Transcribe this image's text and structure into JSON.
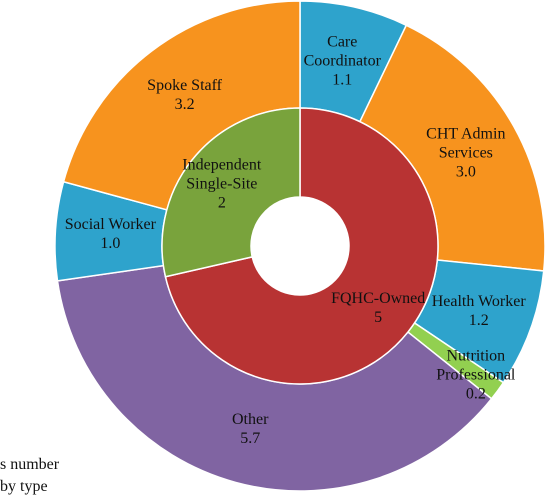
{
  "chart_data": [
    {
      "type": "donut",
      "categories": [
        "Care Coordinator",
        "CHT Admin Services",
        "Health Worker",
        "Nutrition Professional",
        "Other",
        "Social Worker",
        "Spoke Staff"
      ],
      "values": [
        1.1,
        3,
        1.2,
        0.2,
        5.7,
        1,
        3.2
      ],
      "value_labels": [
        "1.1",
        "3.0",
        "1.2",
        "0.2",
        "5.7",
        "1.0",
        "3.2"
      ],
      "colors": [
        "#2ea3cc",
        "#f7931e",
        "#2ea3cc",
        "#92d050",
        "#8064a2",
        "#2ea3cc",
        "#f7931e"
      ]
    },
    {
      "type": "donut",
      "categories": [
        "FQHC-Owned",
        "Independent Single-Site"
      ],
      "values": [
        5,
        2
      ],
      "colors": [
        "#b83333",
        "#79a33c"
      ]
    }
  ],
  "notes": [
    "s number",
    "by type"
  ]
}
